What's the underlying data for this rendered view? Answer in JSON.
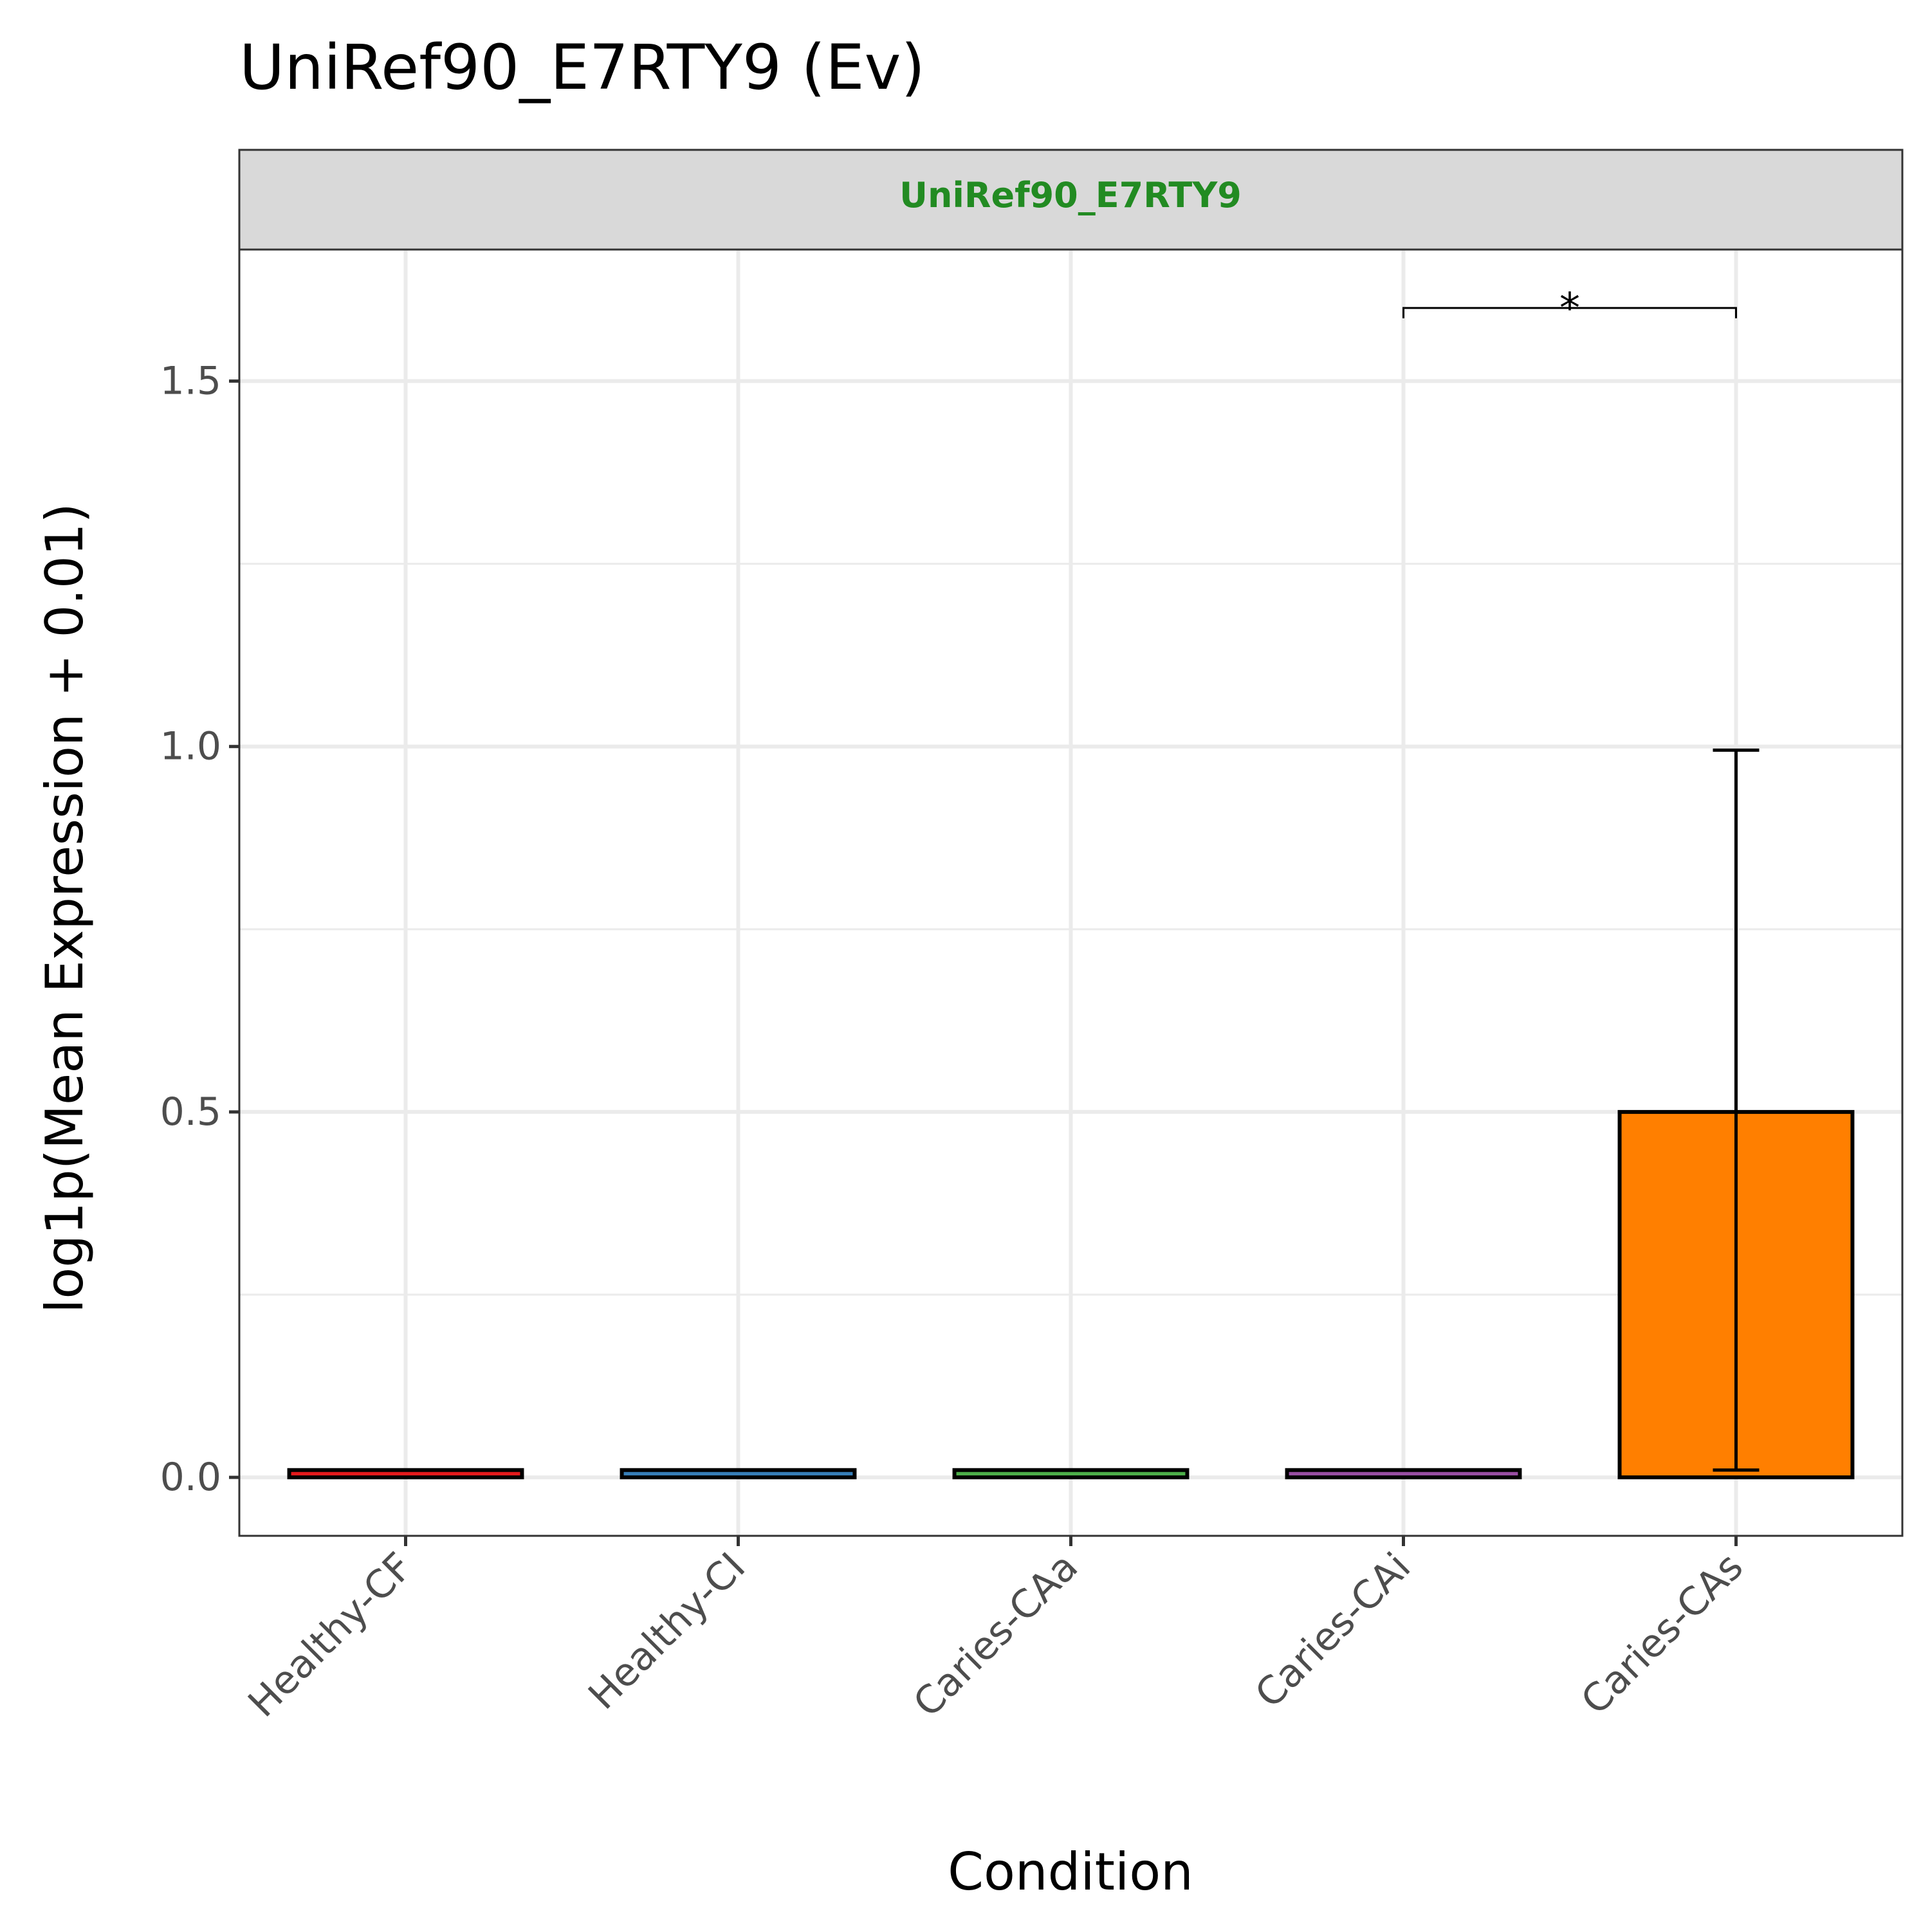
{
  "chart_data": {
    "type": "bar",
    "title": "UniRef90_E7RTY9 (Ev)",
    "facet_label": "UniRef90_E7RTY9",
    "facet_label_color": "#228B22",
    "xlabel": "Condition",
    "ylabel": "log1p(Mean Expression + 0.01)",
    "categories": [
      "Healthy-CF",
      "Healthy-CI",
      "Caries-CAa",
      "Caries-CAi",
      "Caries-CAs"
    ],
    "values": [
      0.01,
      0.01,
      0.01,
      0.01,
      0.5
    ],
    "error_low": [
      0.01,
      0.01,
      0.01,
      0.01,
      0.01
    ],
    "error_high": [
      0.01,
      0.01,
      0.01,
      0.01,
      0.995
    ],
    "colors": [
      "#E41A1C",
      "#377EB8",
      "#4DAF4A",
      "#984EA3",
      "#FF7F00"
    ],
    "ylim": [
      -0.08,
      1.68
    ],
    "yticks": [
      0.0,
      0.5,
      1.0,
      1.5
    ],
    "ytick_labels": [
      "0.0",
      "0.5",
      "1.0",
      "1.5"
    ],
    "grid": true,
    "significance": [
      {
        "from": "Caries-CAi",
        "to": "Caries-CAs",
        "label": "*",
        "y": 1.6
      }
    ]
  }
}
